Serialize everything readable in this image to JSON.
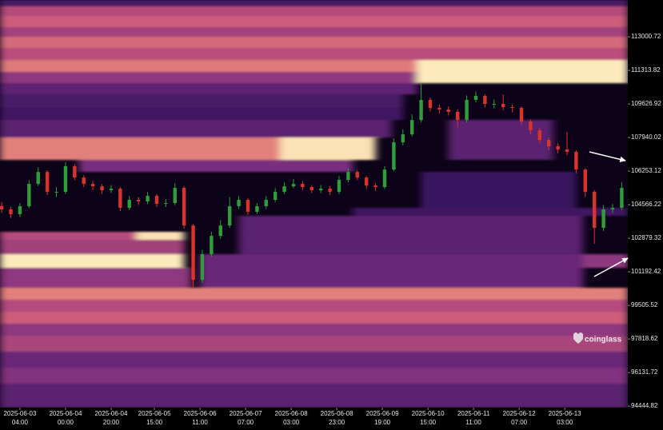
{
  "chart_data": {
    "type": "candlestick",
    "watermark": "coinglass",
    "up_color": "#2f9e3a",
    "down_color": "#d9342b",
    "background": "#0c0318",
    "colorscale": [
      [
        0,
        "#140328"
      ],
      [
        0.2,
        "#3a1460"
      ],
      [
        0.4,
        "#7a2e80"
      ],
      [
        0.6,
        "#c9567a"
      ],
      [
        0.75,
        "#e88a7c"
      ],
      [
        0.9,
        "#f7d0a0"
      ],
      [
        1,
        "#fff5c8"
      ]
    ],
    "xlim": [
      "2025-06-02 19:15",
      "2025-06-14 06:40"
    ],
    "ylim": [
      94370,
      114850
    ],
    "yticks": [
      113000.72,
      111313.82,
      109626.92,
      107940.02,
      106253.12,
      104566.22,
      102879.32,
      101192.42,
      99505.52,
      97818.62,
      96131.72,
      94444.82
    ],
    "xticks": [
      "2025-06-03 04:00",
      "2025-06-04 00:00",
      "2025-06-04 20:00",
      "2025-06-05 15:00",
      "2025-06-06 11:00",
      "2025-06-07 07:00",
      "2025-06-08 03:00",
      "2025-06-08 23:00",
      "2025-06-09 19:00",
      "2025-06-10 15:00",
      "2025-06-11 11:00",
      "2025-06-12 07:00",
      "2025-06-13 03:00"
    ],
    "x": [
      "2025-06-02 20:00",
      "2025-06-03 00:00",
      "2025-06-03 04:00",
      "2025-06-03 08:00",
      "2025-06-03 12:00",
      "2025-06-03 16:00",
      "2025-06-03 20:00",
      "2025-06-04 00:00",
      "2025-06-04 04:00",
      "2025-06-04 08:00",
      "2025-06-04 12:00",
      "2025-06-04 16:00",
      "2025-06-04 20:00",
      "2025-06-05 00:00",
      "2025-06-05 04:00",
      "2025-06-05 08:00",
      "2025-06-05 12:00",
      "2025-06-05 16:00",
      "2025-06-05 20:00",
      "2025-06-06 00:00",
      "2025-06-06 04:00",
      "2025-06-06 08:00",
      "2025-06-06 12:00",
      "2025-06-06 16:00",
      "2025-06-06 20:00",
      "2025-06-07 00:00",
      "2025-06-07 04:00",
      "2025-06-07 08:00",
      "2025-06-07 12:00",
      "2025-06-07 16:00",
      "2025-06-07 20:00",
      "2025-06-08 00:00",
      "2025-06-08 04:00",
      "2025-06-08 08:00",
      "2025-06-08 12:00",
      "2025-06-08 16:00",
      "2025-06-08 20:00",
      "2025-06-09 00:00",
      "2025-06-09 04:00",
      "2025-06-09 08:00",
      "2025-06-09 12:00",
      "2025-06-09 16:00",
      "2025-06-09 20:00",
      "2025-06-10 00:00",
      "2025-06-10 04:00",
      "2025-06-10 08:00",
      "2025-06-10 12:00",
      "2025-06-10 16:00",
      "2025-06-10 20:00",
      "2025-06-11 00:00",
      "2025-06-11 04:00",
      "2025-06-11 08:00",
      "2025-06-11 12:00",
      "2025-06-11 16:00",
      "2025-06-11 20:00",
      "2025-06-12 00:00",
      "2025-06-12 04:00",
      "2025-06-12 08:00",
      "2025-06-12 12:00",
      "2025-06-12 16:00",
      "2025-06-12 20:00",
      "2025-06-13 00:00",
      "2025-06-13 04:00",
      "2025-06-13 08:00",
      "2025-06-13 12:00",
      "2025-06-13 16:00",
      "2025-06-13 20:00",
      "2025-06-14 00:00",
      "2025-06-14 04:00"
    ],
    "open": [
      104500,
      104330,
      104090,
      104490,
      105610,
      106210,
      105210,
      105210,
      106500,
      105930,
      105610,
      105490,
      105290,
      105370,
      104410,
      104810,
      104730,
      105010,
      104610,
      104650,
      105410,
      103520,
      100790,
      102080,
      103000,
      103520,
      104490,
      104810,
      104210,
      104490,
      104810,
      105210,
      105490,
      105610,
      105450,
      105290,
      105370,
      105210,
      105810,
      106210,
      105930,
      105530,
      105450,
      106330,
      107700,
      108100,
      108820,
      109830,
      109430,
      109350,
      109230,
      108820,
      109830,
      110030,
      109630,
      109630,
      109470,
      109430,
      108740,
      108300,
      107820,
      107500,
      107340,
      107220,
      106330,
      105210,
      103400,
      104330,
      104410
    ],
    "high": [
      104700,
      104450,
      104650,
      105800,
      106450,
      106300,
      105450,
      106700,
      106600,
      106050,
      105750,
      105600,
      105550,
      105450,
      105000,
      104950,
      105200,
      105100,
      104850,
      105650,
      105500,
      103600,
      102300,
      103200,
      103800,
      104950,
      105000,
      104900,
      104650,
      105000,
      105400,
      105700,
      105850,
      105750,
      105550,
      105550,
      105500,
      106000,
      106400,
      106300,
      106000,
      105650,
      106500,
      107900,
      108350,
      109100,
      110630,
      109950,
      109600,
      109500,
      109350,
      110050,
      110250,
      110100,
      109850,
      110100,
      109600,
      109500,
      108850,
      108400,
      107950,
      107650,
      108220,
      107300,
      106400,
      105300,
      104550,
      104600,
      105690
    ],
    "low": [
      104150,
      103900,
      103950,
      104400,
      105500,
      105050,
      104950,
      105100,
      105800,
      105450,
      105300,
      105100,
      105150,
      104250,
      104300,
      104550,
      104600,
      104450,
      104450,
      104550,
      103350,
      100400,
      100650,
      101950,
      102850,
      103400,
      104350,
      104050,
      104100,
      104350,
      104700,
      105100,
      105400,
      105300,
      105150,
      105150,
      105050,
      105100,
      105700,
      105800,
      105350,
      105250,
      105350,
      106250,
      107550,
      108000,
      108700,
      109250,
      109150,
      109050,
      108450,
      108700,
      109700,
      109450,
      109400,
      109300,
      109200,
      108550,
      108100,
      107650,
      107300,
      107150,
      107050,
      106150,
      104950,
      102600,
      103250,
      104150,
      104300
    ],
    "close": [
      104330,
      104090,
      104490,
      105610,
      106210,
      105210,
      105210,
      106500,
      105930,
      105610,
      105490,
      105290,
      105370,
      104410,
      104810,
      104730,
      105010,
      104610,
      104650,
      105410,
      103520,
      100790,
      102080,
      103000,
      103520,
      104490,
      104810,
      104210,
      104490,
      104810,
      105210,
      105490,
      105610,
      105450,
      105290,
      105370,
      105210,
      105810,
      106210,
      105930,
      105530,
      105450,
      106330,
      107700,
      108100,
      108820,
      109830,
      109430,
      109350,
      109230,
      108820,
      109830,
      110030,
      109630,
      109630,
      109470,
      109430,
      108740,
      108300,
      107820,
      107500,
      107340,
      107220,
      106330,
      105210,
      103400,
      104330,
      104410,
      105410
    ],
    "heatmap": [
      {
        "low": 114527,
        "high": 114848,
        "intensity": 0.25,
        "from": "2025-06-02 19:15",
        "to": "2025-06-14 06:40"
      },
      {
        "low": 114045,
        "high": 114527,
        "intensity": 0.55,
        "from": "2025-06-02 19:15",
        "to": "2025-06-14 06:40"
      },
      {
        "low": 113483,
        "high": 114045,
        "intensity": 0.62,
        "from": "2025-06-02 19:15",
        "to": "2025-06-14 06:40"
      },
      {
        "low": 113001,
        "high": 113483,
        "intensity": 0.5,
        "from": "2025-06-02 19:15",
        "to": "2025-06-14 06:40"
      },
      {
        "low": 112438,
        "high": 113001,
        "intensity": 0.66,
        "from": "2025-06-02 19:15",
        "to": "2025-06-14 06:40"
      },
      {
        "low": 111836,
        "high": 112438,
        "intensity": 0.56,
        "from": "2025-06-02 19:15",
        "to": "2025-06-14 06:40"
      },
      {
        "low": 111234,
        "high": 111836,
        "intensity": 0.7,
        "from": "2025-06-02 19:15",
        "to": "2025-06-10 10:00"
      },
      {
        "low": 110671,
        "high": 111234,
        "intensity": 0.45,
        "from": "2025-06-02 19:15",
        "to": "2025-06-10 10:00"
      },
      {
        "low": 110671,
        "high": 111836,
        "intensity": 0.97,
        "from": "2025-06-10 10:00",
        "to": "2025-06-14 06:40"
      },
      {
        "low": 110109,
        "high": 110671,
        "intensity": 0.32,
        "from": "2025-06-02 19:15",
        "to": "2025-06-10 10:00"
      },
      {
        "low": 109426,
        "high": 110109,
        "intensity": 0.25,
        "from": "2025-06-02 19:15",
        "to": "2025-06-10 04:00"
      },
      {
        "low": 108824,
        "high": 109426,
        "intensity": 0.22,
        "from": "2025-06-02 19:15",
        "to": "2025-06-10 04:00"
      },
      {
        "low": 107941,
        "high": 108824,
        "intensity": 0.3,
        "from": "2025-06-02 19:15",
        "to": "2025-06-09 23:00"
      },
      {
        "low": 106816,
        "high": 107941,
        "intensity": 0.72,
        "from": "2025-06-02 19:15",
        "to": "2025-06-09 12:00"
      },
      {
        "low": 106816,
        "high": 107941,
        "intensity": 0.95,
        "from": "2025-06-07 22:00",
        "to": "2025-06-09 16:00"
      },
      {
        "low": 106214,
        "high": 106816,
        "intensity": 0.4,
        "from": "2025-06-04 06:00",
        "to": "2025-06-09 06:00"
      },
      {
        "low": 106816,
        "high": 108824,
        "intensity": 0.3,
        "from": "2025-06-11 00:00",
        "to": "2025-06-12 22:00"
      },
      {
        "low": 104406,
        "high": 106214,
        "intensity": 0.2,
        "from": "2025-06-10 12:00",
        "to": "2025-06-13 08:00"
      },
      {
        "low": 104005,
        "high": 104406,
        "intensity": 0.22,
        "from": "2025-06-09 06:00",
        "to": "2025-06-14 06:40"
      },
      {
        "low": 103202,
        "high": 104005,
        "intensity": 0.3,
        "from": "2025-06-07 04:00",
        "to": "2025-06-13 11:00"
      },
      {
        "low": 102800,
        "high": 103202,
        "intensity": 0.55,
        "from": "2025-06-02 19:15",
        "to": "2025-06-06 04:00"
      },
      {
        "low": 102800,
        "high": 103202,
        "intensity": 0.95,
        "from": "2025-06-05 07:00",
        "to": "2025-06-06 04:00"
      },
      {
        "low": 102077,
        "high": 102800,
        "intensity": 0.5,
        "from": "2025-06-02 19:15",
        "to": "2025-06-06 04:00"
      },
      {
        "low": 101394,
        "high": 102077,
        "intensity": 0.97,
        "from": "2025-06-02 19:15",
        "to": "2025-06-06 04:00"
      },
      {
        "low": 100390,
        "high": 101394,
        "intensity": 0.45,
        "from": "2025-06-02 19:15",
        "to": "2025-06-06 07:00"
      },
      {
        "low": 102077,
        "high": 103202,
        "intensity": 0.3,
        "from": "2025-06-07 04:00",
        "to": "2025-06-13 11:00"
      },
      {
        "low": 101394,
        "high": 102077,
        "intensity": 0.45,
        "from": "2025-06-13 11:00",
        "to": "2025-06-14 06:40"
      },
      {
        "low": 100390,
        "high": 102077,
        "intensity": 0.35,
        "from": "2025-06-06 11:00",
        "to": "2025-06-13 11:00"
      },
      {
        "low": 99788,
        "high": 100390,
        "intensity": 0.72,
        "from": "2025-06-02 19:15",
        "to": "2025-06-14 06:40"
      },
      {
        "low": 99186,
        "high": 99788,
        "intensity": 0.55,
        "from": "2025-06-02 19:15",
        "to": "2025-06-14 06:40"
      },
      {
        "low": 98584,
        "high": 99186,
        "intensity": 0.62,
        "from": "2025-06-02 19:15",
        "to": "2025-06-14 06:40"
      },
      {
        "low": 97981,
        "high": 98584,
        "intensity": 0.45,
        "from": "2025-06-02 19:15",
        "to": "2025-06-14 06:40"
      },
      {
        "low": 97178,
        "high": 97981,
        "intensity": 0.52,
        "from": "2025-06-02 19:15",
        "to": "2025-06-14 06:40"
      },
      {
        "low": 96375,
        "high": 97178,
        "intensity": 0.35,
        "from": "2025-06-02 19:15",
        "to": "2025-06-14 06:40"
      },
      {
        "low": 95572,
        "high": 96375,
        "intensity": 0.42,
        "from": "2025-06-02 19:15",
        "to": "2025-06-14 06:40"
      },
      {
        "low": 94370,
        "high": 95572,
        "intensity": 0.3,
        "from": "2025-06-02 19:15",
        "to": "2025-06-14 06:40"
      }
    ]
  }
}
